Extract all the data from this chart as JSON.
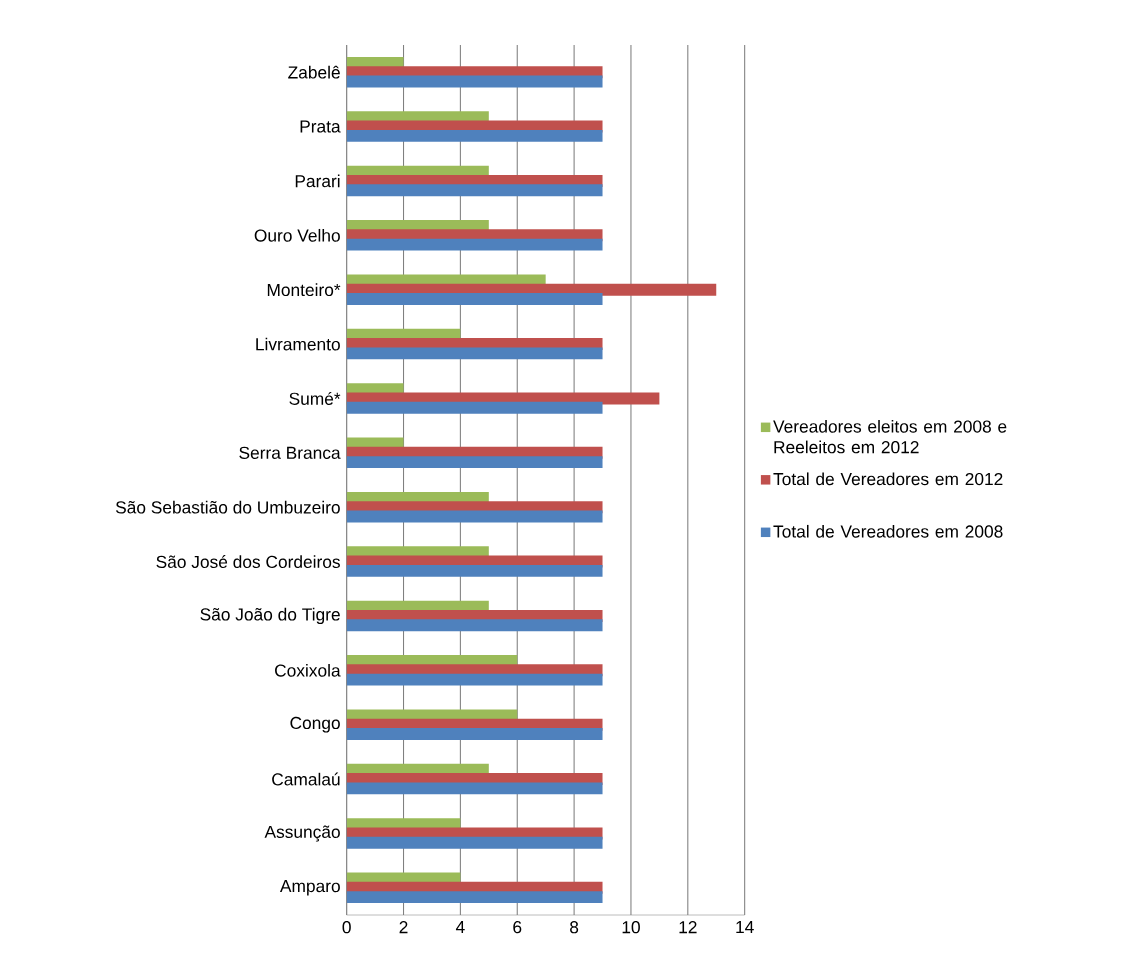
{
  "chart_data": {
    "type": "bar",
    "orientation": "horizontal",
    "categories": [
      "Zabelê",
      "Prata",
      "Parari",
      "Ouro Velho",
      "Monteiro*",
      "Livramento",
      "Sumé*",
      "Serra Branca",
      "São Sebastião do Umbuzeiro",
      "São José dos Cordeiros",
      "São João do Tigre",
      "Coxixola",
      "Congo",
      "Camalaú",
      "Assunção",
      "Amparo"
    ],
    "series": [
      {
        "name": "Vereadores eleitos em 2008 e Reeleitos em 2012",
        "color": "#9bbb59",
        "values": [
          2,
          5,
          5,
          5,
          7,
          4,
          2,
          2,
          5,
          5,
          5,
          6,
          6,
          5,
          4,
          4
        ]
      },
      {
        "name": "Total de Vereadores em 2012",
        "color": "#c0504d",
        "values": [
          9,
          9,
          9,
          9,
          13,
          9,
          11,
          9,
          9,
          9,
          9,
          9,
          9,
          9,
          9,
          9
        ]
      },
      {
        "name": "Total de Vereadores em 2008",
        "color": "#4f81bd",
        "values": [
          9,
          9,
          9,
          9,
          9,
          9,
          9,
          9,
          9,
          9,
          9,
          9,
          9,
          9,
          9,
          9
        ]
      }
    ],
    "xlim": [
      0,
      14
    ],
    "xticks": [
      0,
      2,
      4,
      6,
      8,
      10,
      12,
      14
    ],
    "grid": "x",
    "legend": "right"
  }
}
